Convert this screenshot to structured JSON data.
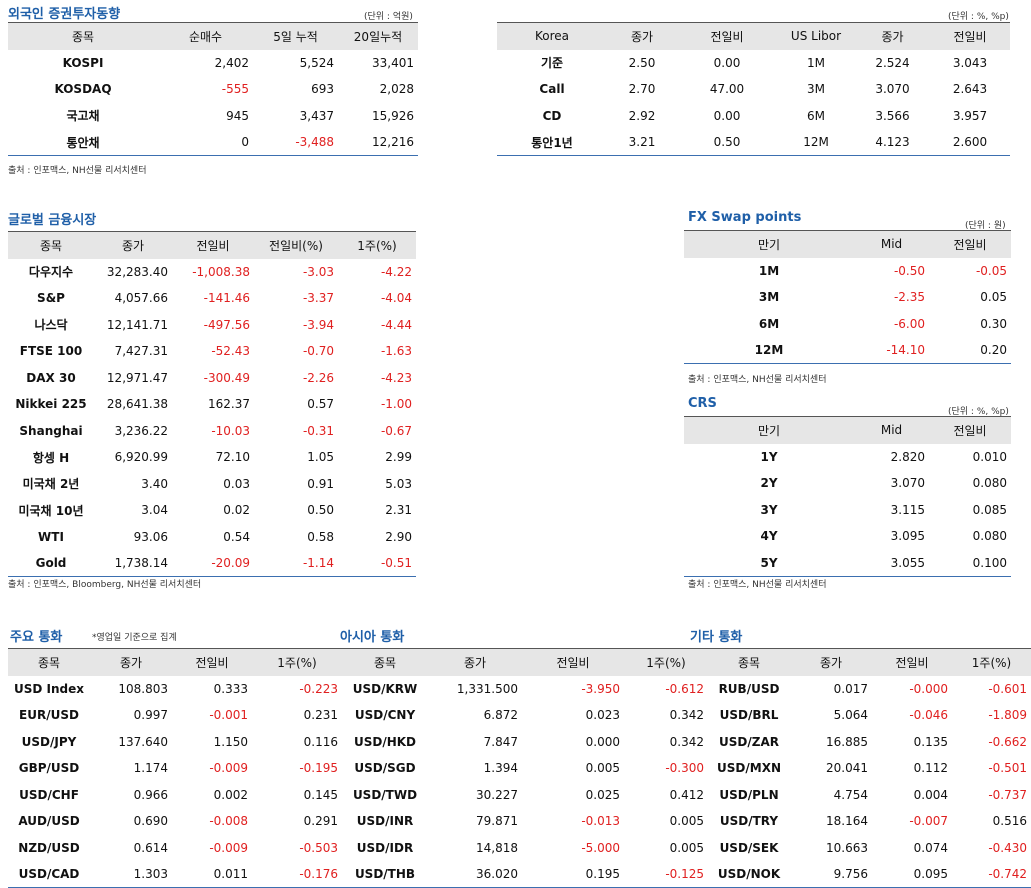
{
  "foreign": {
    "title": "외국인 증권투자동향",
    "unit": "(단위 : 억원)",
    "headers": [
      "종목",
      "순매수",
      "5일 누적",
      "20일누적"
    ],
    "rows": [
      [
        "KOSPI",
        "2,402",
        "5,524",
        "33,401"
      ],
      [
        "KOSDAQ",
        "-555",
        "693",
        "2,028"
      ],
      [
        "국고채",
        "945",
        "3,437",
        "15,926"
      ],
      [
        "통안채",
        "0",
        "-3,488",
        "12,216"
      ]
    ],
    "source": "출처 : 인포맥스, NH선물 리서치센터"
  },
  "rates": {
    "unit": "(단위 : %, %p)",
    "headers": [
      "Korea",
      "종가",
      "전일비",
      "US Libor",
      "종가",
      "전일비"
    ],
    "rows": [
      [
        "기준",
        "2.50",
        "0.00",
        "1M",
        "2.524",
        "3.043"
      ],
      [
        "Call",
        "2.70",
        "47.00",
        "3M",
        "3.070",
        "2.643"
      ],
      [
        "CD",
        "2.92",
        "0.00",
        "6M",
        "3.566",
        "3.957"
      ],
      [
        "통안1년",
        "3.21",
        "0.50",
        "12M",
        "4.123",
        "2.600"
      ]
    ]
  },
  "global": {
    "title": "글로벌 금융시장",
    "headers": [
      "종목",
      "종가",
      "전일비",
      "전일비(%)",
      "1주(%)"
    ],
    "rows": [
      [
        "다우지수",
        "32,283.40",
        "-1,008.38",
        "-3.03",
        "-4.22"
      ],
      [
        "S&P",
        "4,057.66",
        "-141.46",
        "-3.37",
        "-4.04"
      ],
      [
        "나스닥",
        "12,141.71",
        "-497.56",
        "-3.94",
        "-4.44"
      ],
      [
        "FTSE 100",
        "7,427.31",
        "-52.43",
        "-0.70",
        "-1.63"
      ],
      [
        "DAX 30",
        "12,971.47",
        "-300.49",
        "-2.26",
        "-4.23"
      ],
      [
        "Nikkei 225",
        "28,641.38",
        "162.37",
        "0.57",
        "-1.00"
      ],
      [
        "Shanghai",
        "3,236.22",
        "-10.03",
        "-0.31",
        "-0.67"
      ],
      [
        "항셍 H",
        "6,920.99",
        "72.10",
        "1.05",
        "2.99"
      ],
      [
        "미국채 2년",
        "3.40",
        "0.03",
        "0.91",
        "5.03"
      ],
      [
        "미국채 10년",
        "3.04",
        "0.02",
        "0.50",
        "2.31"
      ],
      [
        "WTI",
        "93.06",
        "0.54",
        "0.58",
        "2.90"
      ],
      [
        "Gold",
        "1,738.14",
        "-20.09",
        "-1.14",
        "-0.51"
      ]
    ],
    "source": "출처 : 인포맥스, Bloomberg, NH선물 리서치센터"
  },
  "fxswap": {
    "title": "FX Swap points",
    "unit": "(단위 : 원)",
    "headers": [
      "만기",
      "Mid",
      "전일비"
    ],
    "rows": [
      [
        "1M",
        "-0.50",
        "-0.05"
      ],
      [
        "3M",
        "-2.35",
        "0.05"
      ],
      [
        "6M",
        "-6.00",
        "0.30"
      ],
      [
        "12M",
        "-14.10",
        "0.20"
      ]
    ],
    "source": "출처 : 인포맥스, NH선물 리서치센터"
  },
  "crs": {
    "title": "CRS",
    "unit": "(단위 : %, %p)",
    "headers": [
      "만기",
      "Mid",
      "전일비"
    ],
    "rows": [
      [
        "1Y",
        "2.820",
        "0.010"
      ],
      [
        "2Y",
        "3.070",
        "0.080"
      ],
      [
        "3Y",
        "3.115",
        "0.085"
      ],
      [
        "4Y",
        "3.095",
        "0.080"
      ],
      [
        "5Y",
        "3.055",
        "0.100"
      ]
    ],
    "source": "출처 : 인포맥스, NH선물 리서치센터"
  },
  "currencies": {
    "major_title": "주요 통화",
    "major_note": "*영업일 기준으로 집계",
    "asia_title": "아시아 통화",
    "other_title": "기타 통화",
    "headers": [
      "종목",
      "종가",
      "전일비",
      "1주(%)"
    ],
    "major": [
      [
        "USD Index",
        "108.803",
        "0.333",
        "-0.223"
      ],
      [
        "EUR/USD",
        "0.997",
        "-0.001",
        "0.231"
      ],
      [
        "USD/JPY",
        "137.640",
        "1.150",
        "0.116"
      ],
      [
        "GBP/USD",
        "1.174",
        "-0.009",
        "-0.195"
      ],
      [
        "USD/CHF",
        "0.966",
        "0.002",
        "0.145"
      ],
      [
        "AUD/USD",
        "0.690",
        "-0.008",
        "0.291"
      ],
      [
        "NZD/USD",
        "0.614",
        "-0.009",
        "-0.503"
      ],
      [
        "USD/CAD",
        "1.303",
        "0.011",
        "-0.176"
      ]
    ],
    "asia": [
      [
        "USD/KRW",
        "1,331.500",
        "-3.950",
        "-0.612"
      ],
      [
        "USD/CNY",
        "6.872",
        "0.023",
        "0.342"
      ],
      [
        "USD/HKD",
        "7.847",
        "0.000",
        "0.342"
      ],
      [
        "USD/SGD",
        "1.394",
        "0.005",
        "-0.300"
      ],
      [
        "USD/TWD",
        "30.227",
        "0.025",
        "0.412"
      ],
      [
        "USD/INR",
        "79.871",
        "-0.013",
        "0.005"
      ],
      [
        "USD/IDR",
        "14,818",
        "-5.000",
        "0.005"
      ],
      [
        "USD/THB",
        "36.020",
        "0.195",
        "-0.125"
      ]
    ],
    "other": [
      [
        "RUB/USD",
        "0.017",
        "-0.000",
        "-0.601"
      ],
      [
        "USD/BRL",
        "5.064",
        "-0.046",
        "-1.809"
      ],
      [
        "USD/ZAR",
        "16.885",
        "0.135",
        "-0.662"
      ],
      [
        "USD/MXN",
        "20.041",
        "0.112",
        "-0.501"
      ],
      [
        "USD/PLN",
        "4.754",
        "0.004",
        "-0.737"
      ],
      [
        "USD/TRY",
        "18.164",
        "-0.007",
        "0.516"
      ],
      [
        "USD/SEK",
        "10.663",
        "0.074",
        "-0.430"
      ],
      [
        "USD/NOK",
        "9.756",
        "0.095",
        "-0.742"
      ]
    ]
  }
}
